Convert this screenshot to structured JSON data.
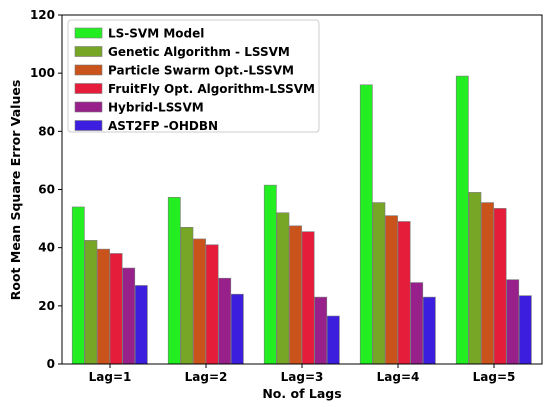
{
  "chart_data": {
    "type": "bar",
    "xlabel": "No. of Lags",
    "ylabel": "Root Mean Square Error Values",
    "ylim": [
      0,
      120
    ],
    "yticks": [
      0,
      20,
      40,
      60,
      80,
      100,
      120
    ],
    "categories": [
      "Lag=1",
      "Lag=2",
      "Lag=3",
      "Lag=4",
      "Lag=5"
    ],
    "legend_position": "upper-left",
    "grid": false,
    "series": [
      {
        "name": "LS-SVM Model",
        "color": "#22ee22",
        "values": [
          54,
          57.3,
          61.5,
          96,
          99
        ]
      },
      {
        "name": "Genetic Algorithm - LSSVM",
        "color": "#77a526",
        "values": [
          42.5,
          47,
          52,
          55.5,
          59
        ]
      },
      {
        "name": "Particle Swarm Opt.-LSSVM",
        "color": "#c9531a",
        "values": [
          39.5,
          43,
          47.5,
          51,
          55.5
        ]
      },
      {
        "name": "FruitFly Opt. Algorithm-LSSVM",
        "color": "#e61d3a",
        "values": [
          38,
          41,
          45.5,
          49,
          53.5
        ]
      },
      {
        "name": "Hybrid-LSSVM",
        "color": "#98208a",
        "values": [
          33,
          29.5,
          23,
          28,
          29
        ]
      },
      {
        "name": "AST2FP -OHDBN",
        "color": "#3c1fde",
        "values": [
          27,
          24,
          16.5,
          23,
          23.5
        ]
      }
    ]
  }
}
